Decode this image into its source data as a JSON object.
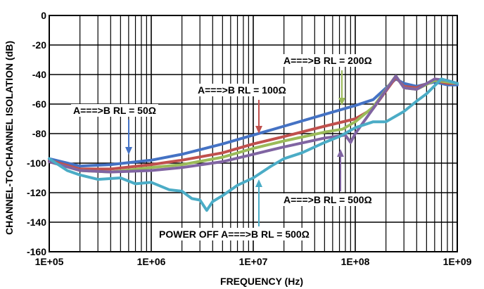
{
  "chart_data": {
    "type": "line",
    "xlabel": "FREQUENCY (Hz)",
    "ylabel": "CHANNEL-TO-CHANNEL ISOLATION (dB)",
    "x_scale": "log",
    "xlim": [
      100000,
      1000000000
    ],
    "ylim": [
      -160,
      0
    ],
    "x_ticks": [
      100000,
      1000000,
      10000000,
      100000000,
      1000000000
    ],
    "x_tick_labels": [
      "1E+05",
      "1E+06",
      "1E+07",
      "1E+08",
      "1E+09"
    ],
    "y_ticks": [
      0,
      -20,
      -40,
      -60,
      -80,
      -100,
      -120,
      -140,
      -160
    ],
    "y_tick_labels": [
      "0",
      "-20",
      "-40",
      "-60",
      "-80",
      "-100",
      "-120",
      "-140",
      "-160"
    ],
    "grid": true,
    "series": [
      {
        "name": "A===>B RL = 50Ω",
        "color": "#4472c4",
        "x": [
          100000,
          200000,
          400000,
          1000000,
          2000000,
          5000000,
          10000000,
          20000000,
          50000000,
          100000000,
          150000000,
          250000000,
          300000000,
          400000000,
          600000000,
          800000000,
          1000000000
        ],
        "y": [
          -97,
          -102,
          -101,
          -98,
          -94,
          -87,
          -81,
          -75,
          -67,
          -61,
          -57,
          -43,
          -46,
          -48,
          -45,
          -47,
          -47
        ]
      },
      {
        "name": "A===>B RL = 100Ω",
        "color": "#c0504d",
        "x": [
          100000,
          200000,
          400000,
          1000000,
          2000000,
          5000000,
          10000000,
          20000000,
          50000000,
          100000000,
          150000000,
          250000000,
          300000000,
          400000000,
          600000000,
          800000000,
          1000000000
        ],
        "y": [
          -98,
          -104,
          -104,
          -101,
          -98,
          -93,
          -87,
          -82,
          -75,
          -70,
          -63,
          -42,
          -48,
          -49,
          -44,
          -46,
          -46
        ]
      },
      {
        "name": "A===>B RL = 200Ω",
        "color": "#9bbb59",
        "x": [
          100000,
          200000,
          400000,
          1000000,
          2000000,
          5000000,
          10000000,
          20000000,
          50000000,
          75000000,
          100000000,
          150000000,
          250000000,
          300000000,
          400000000,
          600000000,
          800000000,
          1000000000
        ],
        "y": [
          -99,
          -105,
          -106,
          -103,
          -101,
          -96,
          -90,
          -85,
          -79,
          -77,
          -72,
          -62,
          -41,
          -49,
          -50,
          -44,
          -45,
          -46
        ]
      },
      {
        "name": "A===>B RL = 500Ω",
        "color": "#8064a2",
        "x": [
          100000,
          200000,
          400000,
          1000000,
          2000000,
          5000000,
          10000000,
          20000000,
          50000000,
          80000000,
          90000000,
          100000000,
          150000000,
          250000000,
          300000000,
          400000000,
          600000000,
          800000000,
          1000000000
        ],
        "y": [
          -99,
          -105,
          -106,
          -105,
          -103,
          -99,
          -94,
          -89,
          -83,
          -81,
          -86,
          -80,
          -63,
          -41,
          -49,
          -50,
          -43,
          -44,
          -46
        ]
      },
      {
        "name": "POWER OFF A===>B RL = 500Ω",
        "color": "#4bacc6",
        "x": [
          100000,
          150000,
          200000,
          300000,
          500000,
          700000,
          1000000,
          1500000,
          2000000,
          2500000,
          3000000,
          3500000,
          4000000,
          5000000,
          7000000,
          10000000,
          15000000,
          20000000,
          30000000,
          50000000,
          70000000,
          100000000,
          150000000,
          200000000,
          300000000,
          400000000,
          500000000,
          700000000,
          1000000000
        ],
        "y": [
          -97,
          -105,
          -108,
          -111,
          -110,
          -114,
          -113,
          -118,
          -119,
          -124,
          -125,
          -132,
          -126,
          -122,
          -115,
          -110,
          -102,
          -97,
          -93,
          -86,
          -82,
          -76,
          -72,
          -72,
          -65,
          -58,
          -53,
          -43,
          -46
        ]
      }
    ],
    "annotations": [
      {
        "text": "A===>B RL = 200Ω",
        "series": 2
      },
      {
        "text": "A===>B RL = 100Ω",
        "series": 1
      },
      {
        "text": "A===>B RL = 50Ω",
        "series": 0
      },
      {
        "text": "A===>B RL = 500Ω",
        "series": 3
      },
      {
        "text": "POWER OFF A===>B RL = 500Ω",
        "series": 4
      }
    ]
  }
}
